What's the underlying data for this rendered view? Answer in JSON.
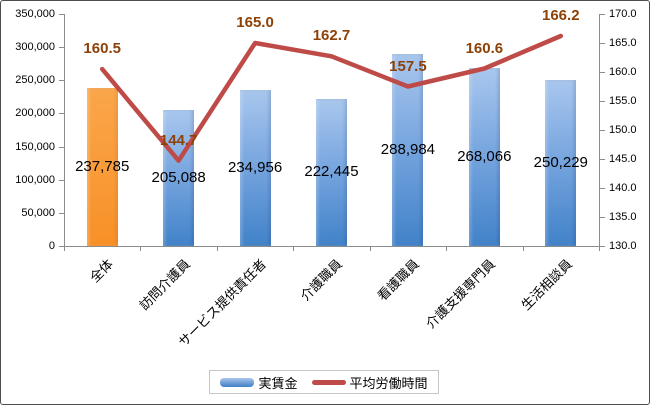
{
  "chart_data": {
    "type": "combo_bar_line",
    "categories": [
      "全体",
      "訪問介護員",
      "サービス提供責任者",
      "介護職員",
      "看護職員",
      "介護支援専門員",
      "生活相談員"
    ],
    "series": [
      {
        "name": "実賃金",
        "type": "bar",
        "axis": "left",
        "values": [
          237785,
          205088,
          234956,
          222445,
          288984,
          268066,
          250229
        ],
        "labels": [
          "237,785",
          "205,088",
          "234,956",
          "222,445",
          "288,984",
          "268,066",
          "250,229"
        ]
      },
      {
        "name": "平均労働時間",
        "type": "line",
        "axis": "right",
        "values": [
          160.5,
          144.7,
          165.0,
          162.7,
          157.5,
          160.6,
          166.2
        ],
        "labels": [
          "160.5",
          "144.7",
          "165.0",
          "162.7",
          "157.5",
          "160.6",
          "166.2"
        ]
      }
    ],
    "left_axis": {
      "min": 0,
      "max": 350000,
      "step": 50000,
      "ticks": [
        "350,000",
        "300,000",
        "250,000",
        "200,000",
        "150,000",
        "100,000",
        "50,000",
        "0"
      ]
    },
    "right_axis": {
      "min": 130,
      "max": 170,
      "step": 5,
      "ticks": [
        "170.0",
        "165.0",
        "160.0",
        "155.0",
        "150.0",
        "145.0",
        "140.0",
        "135.0",
        "130.0"
      ]
    },
    "legend": {
      "position": "bottom",
      "items": [
        "実賃金",
        "平均労働時間"
      ]
    },
    "highlight_index": 0,
    "gridlines": false,
    "colors": {
      "bar_top": "#A9C7EE",
      "bar_bottom": "#4182C8",
      "bar_highlight_top": "#FAA64B",
      "bar_highlight_bottom": "#F89027",
      "line": "#BE4B48",
      "line_label": "#8E4107",
      "bar_label": "#000000",
      "axis": "#8C8C8C",
      "legend_border": "#C6C6C6"
    }
  }
}
